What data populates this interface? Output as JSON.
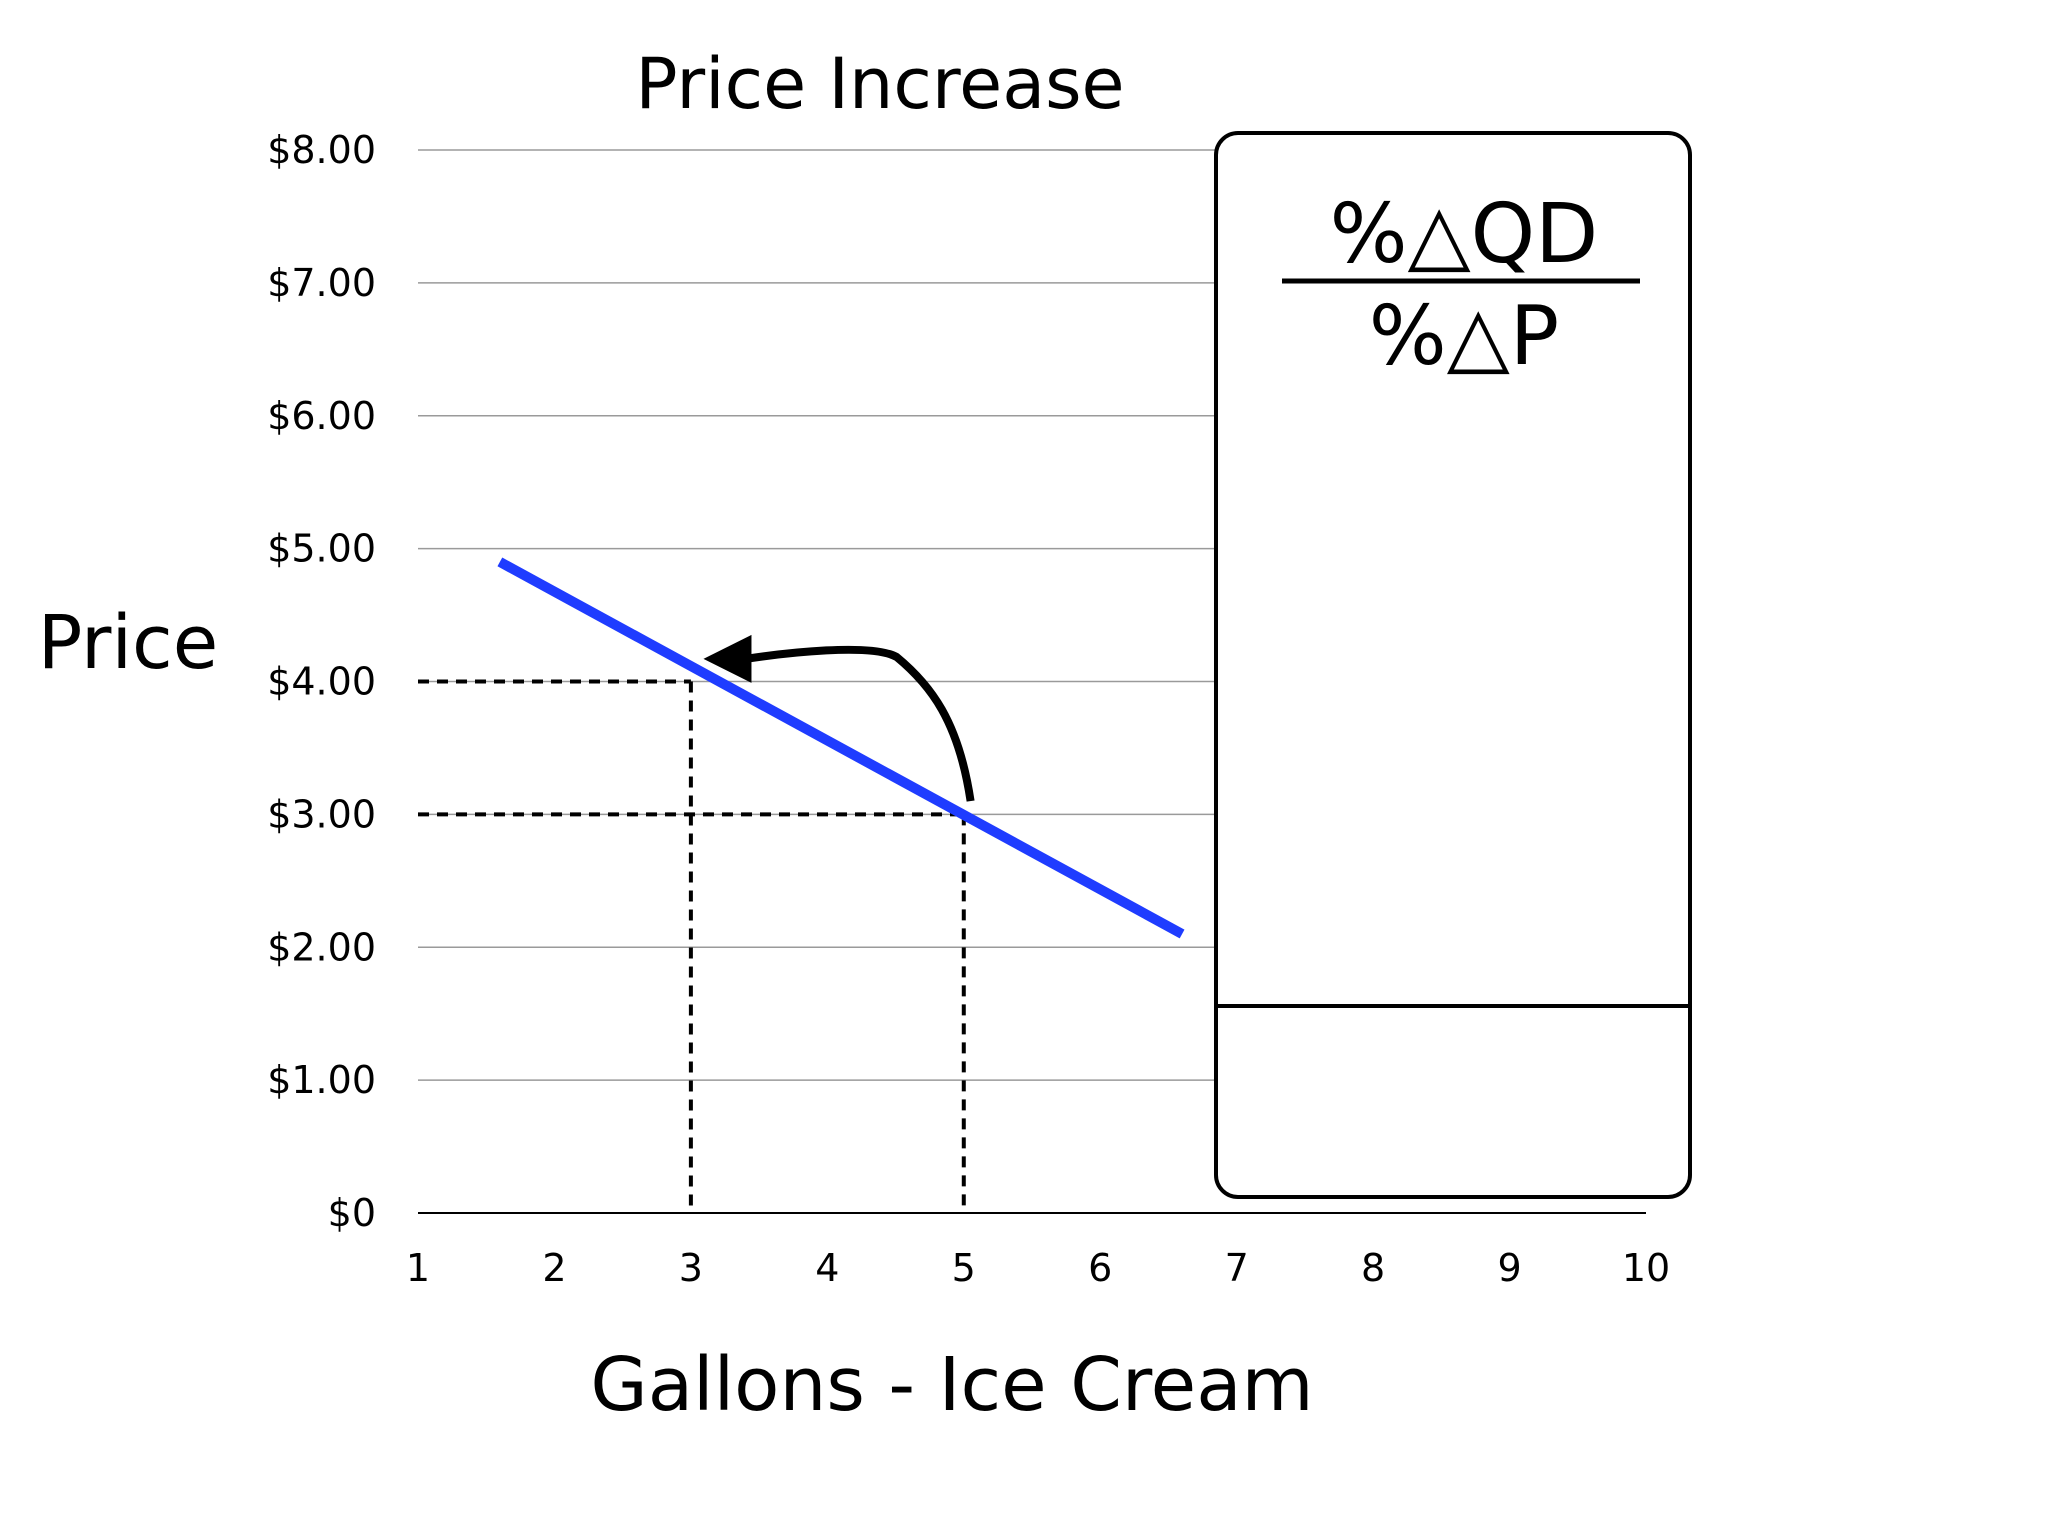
{
  "chart_data": {
    "type": "line",
    "title": "Price Increase",
    "xlabel": "Gallons - Ice Cream",
    "ylabel": "Price",
    "x_ticks": [
      "1",
      "2",
      "3",
      "4",
      "5",
      "6",
      "7",
      "8",
      "9",
      "10"
    ],
    "y_ticks": [
      "$0",
      "$1.00",
      "$2.00",
      "$3.00",
      "$4.00",
      "$5.00",
      "$6.00",
      "$7.00",
      "$8.00"
    ],
    "xlim": [
      1,
      10
    ],
    "ylim": [
      0,
      8
    ],
    "grid": true,
    "series": [
      {
        "x": [
          1.6,
          6.6
        ],
        "y": [
          4.9,
          2.1
        ],
        "color": "#1f3cff"
      }
    ],
    "highlighted_points": [
      {
        "x": 3,
        "y": 4.0
      },
      {
        "x": 5,
        "y": 3.0
      }
    ],
    "arrow": {
      "from": {
        "x": 5.05,
        "y": 3.1
      },
      "to": {
        "x": 3.4,
        "y": 4.2
      }
    }
  },
  "formula_box": {
    "numerator": "%△QD",
    "denominator": "%△P"
  }
}
